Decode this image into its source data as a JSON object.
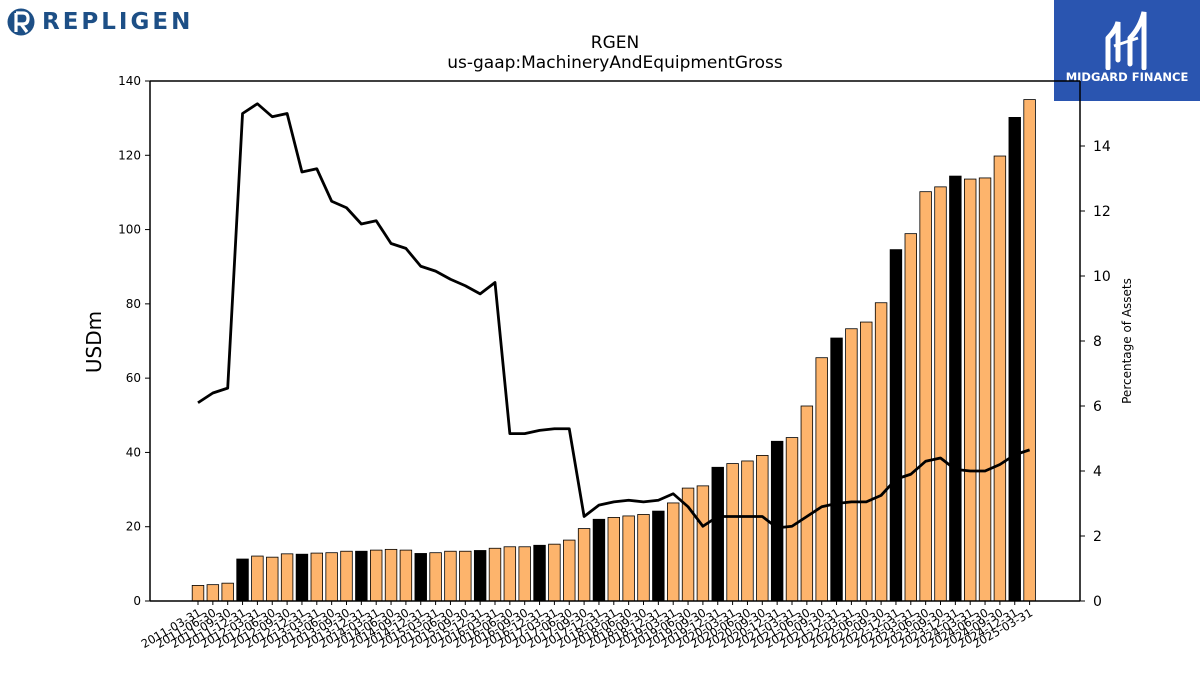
{
  "header": {
    "logo_text": "REPLIGEN",
    "brand_name": "MIDGARD FINANCE"
  },
  "colors": {
    "bar_default": "#fdb46c",
    "bar_highlight": "#000000",
    "line": "#000000",
    "brand_blue": "#2a55b0",
    "logo_blue": "#1d4f86"
  },
  "chart_data": {
    "type": "bar",
    "title": "RGEN",
    "subtitle": "us-gaap:MachineryAndEquipmentGross",
    "ylabel": "USDm",
    "y2label": "Percentage of Assets",
    "ylim": [
      0,
      140
    ],
    "y2lim": [
      0,
      16
    ],
    "yticks": [
      0,
      20,
      40,
      60,
      80,
      100,
      120,
      140
    ],
    "y2ticks": [
      0,
      2,
      4,
      6,
      8,
      10,
      12,
      14
    ],
    "categories": [
      "2011-03-31",
      "2011-06-30",
      "2011-09-30",
      "2011-12-31",
      "2012-03-31",
      "2012-06-30",
      "2012-09-30",
      "2012-12-31",
      "2013-03-31",
      "2013-06-30",
      "2013-09-30",
      "2013-12-31",
      "2014-03-31",
      "2014-06-30",
      "2014-09-30",
      "2014-12-31",
      "2015-03-31",
      "2015-06-30",
      "2015-09-30",
      "2015-12-31",
      "2016-03-31",
      "2016-06-30",
      "2016-09-30",
      "2016-12-31",
      "2017-03-31",
      "2017-06-30",
      "2017-09-30",
      "2017-12-31",
      "2018-03-31",
      "2018-06-30",
      "2018-09-30",
      "2018-12-31",
      "2019-03-31",
      "2019-06-30",
      "2019-09-30",
      "2019-12-31",
      "2020-03-31",
      "2020-06-30",
      "2020-09-30",
      "2020-12-31",
      "2021-03-31",
      "2021-06-30",
      "2021-09-30",
      "2021-12-31",
      "2022-03-31",
      "2022-06-30",
      "2022-09-30",
      "2022-12-31",
      "2023-03-31",
      "2023-06-30",
      "2023-09-30",
      "2023-12-31",
      "2024-03-31",
      "2024-06-30",
      "2024-09-30",
      "2024-12-31",
      "2025-03-31"
    ],
    "xtick_labels": [
      "2011-03-31",
      "2011-06-30",
      "2011-09-30",
      "2011-12-31",
      "2012-03-31",
      "2012-06-30",
      "2012-09-30",
      "2012-12-31",
      "2013-03-31",
      "2013-06-30",
      "2013-09-30",
      "2013-12-31",
      "2014-03-31",
      "2014-06-30",
      "2014-09-30",
      "2014-12-31",
      "2015-03-31",
      "2015-06-30",
      "2015-09-30",
      "2015-12-31",
      "2016-03-31",
      "2016-06-30",
      "2016-09-30",
      "2016-12-31",
      "2017-03-31",
      "2017-06-30",
      "2017-09-30",
      "2017-12-31",
      "2018-03-31",
      "2018-06-30",
      "2018-09-30",
      "2018-12-31",
      "2019-03-31",
      "2019-06-30",
      "2019-09-30",
      "2019-12-31",
      "2020-03-31",
      "2020-06-30",
      "2020-09-30",
      "2020-12-31",
      "2021-03-31",
      "2021-06-30",
      "2021-09-30",
      "2021-12-31",
      "2022-03-31",
      "2022-06-30",
      "2022-09-30",
      "2022-12-31",
      "2023-03-31",
      "2023-06-30",
      "2023-09-30",
      "2023-12-31",
      "2024-03-31",
      "2024-06-30",
      "2024-09-30",
      "2024-12-31",
      "2025-03-31"
    ],
    "series": [
      {
        "type": "bar",
        "axis": "left",
        "values": [
          4.2,
          4.4,
          4.8,
          11.3,
          12.1,
          11.8,
          12.7,
          12.6,
          12.9,
          13.0,
          13.4,
          13.4,
          13.7,
          13.9,
          13.7,
          12.8,
          13.0,
          13.4,
          13.4,
          13.6,
          14.2,
          14.6,
          14.6,
          15.0,
          15.3,
          16.4,
          19.5,
          22.0,
          22.5,
          22.9,
          23.3,
          24.2,
          26.4,
          30.4,
          31.0,
          36.0,
          37.0,
          37.7,
          39.2,
          43.0,
          44.0,
          52.5,
          65.5,
          70.8,
          73.3,
          75.1,
          80.3,
          94.6,
          98.9,
          110.2,
          111.5,
          114.4,
          113.6,
          113.9,
          119.8,
          130.2,
          135.0
        ],
        "highlight": [
          false,
          false,
          false,
          true,
          false,
          false,
          false,
          true,
          false,
          false,
          false,
          true,
          false,
          false,
          false,
          true,
          false,
          false,
          false,
          true,
          false,
          false,
          false,
          true,
          false,
          false,
          false,
          true,
          false,
          false,
          false,
          true,
          false,
          false,
          false,
          true,
          false,
          false,
          false,
          true,
          false,
          false,
          false,
          true,
          false,
          false,
          false,
          true,
          false,
          false,
          false,
          true,
          false,
          false,
          false,
          true,
          false
        ]
      },
      {
        "type": "line",
        "axis": "right",
        "values": [
          6.1,
          6.4,
          6.55,
          15.0,
          15.3,
          14.9,
          15.0,
          13.2,
          13.3,
          12.3,
          12.1,
          11.6,
          11.7,
          11.0,
          10.85,
          10.3,
          10.15,
          9.9,
          9.7,
          9.45,
          9.8,
          5.15,
          5.15,
          5.25,
          5.3,
          5.3,
          2.6,
          2.95,
          3.05,
          3.1,
          3.05,
          3.1,
          3.3,
          2.9,
          2.3,
          2.6,
          2.6,
          2.6,
          2.6,
          2.25,
          2.3,
          2.6,
          2.9,
          3.0,
          3.05,
          3.05,
          3.25,
          3.75,
          3.9,
          4.3,
          4.4,
          4.05,
          4.0,
          4.0,
          4.2,
          4.5,
          4.65
        ]
      }
    ],
    "grid": false,
    "legend": "none"
  }
}
